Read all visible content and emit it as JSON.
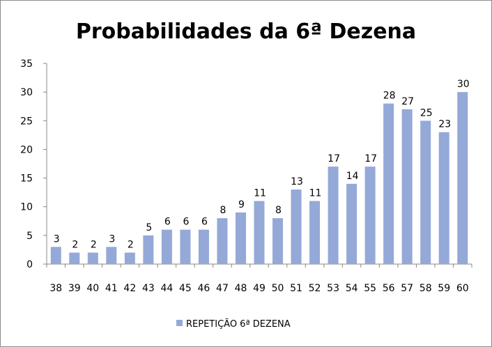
{
  "chart_data": {
    "type": "bar",
    "title": "Probabilidades da 6ª Dezena",
    "xlabel": "",
    "ylabel": "",
    "categories": [
      "38",
      "39",
      "40",
      "41",
      "42",
      "43",
      "44",
      "45",
      "46",
      "47",
      "48",
      "49",
      "50",
      "51",
      "52",
      "53",
      "54",
      "55",
      "56",
      "57",
      "58",
      "59",
      "60"
    ],
    "series": [
      {
        "name": "REPETIÇÃO 6ª DEZENA",
        "values": [
          3,
          2,
          2,
          3,
          2,
          5,
          6,
          6,
          6,
          8,
          9,
          11,
          8,
          13,
          11,
          17,
          14,
          17,
          28,
          27,
          25,
          23,
          30
        ],
        "color": "#94a9d7"
      }
    ],
    "ylim": [
      0,
      35
    ],
    "yticks": [
      0,
      5,
      10,
      15,
      20,
      25,
      30,
      35
    ],
    "grid": false,
    "data_labels": true,
    "legend": "bottom",
    "colors": {
      "axis": "#888888",
      "bar": "#94a9d7",
      "text": "#000000"
    }
  }
}
